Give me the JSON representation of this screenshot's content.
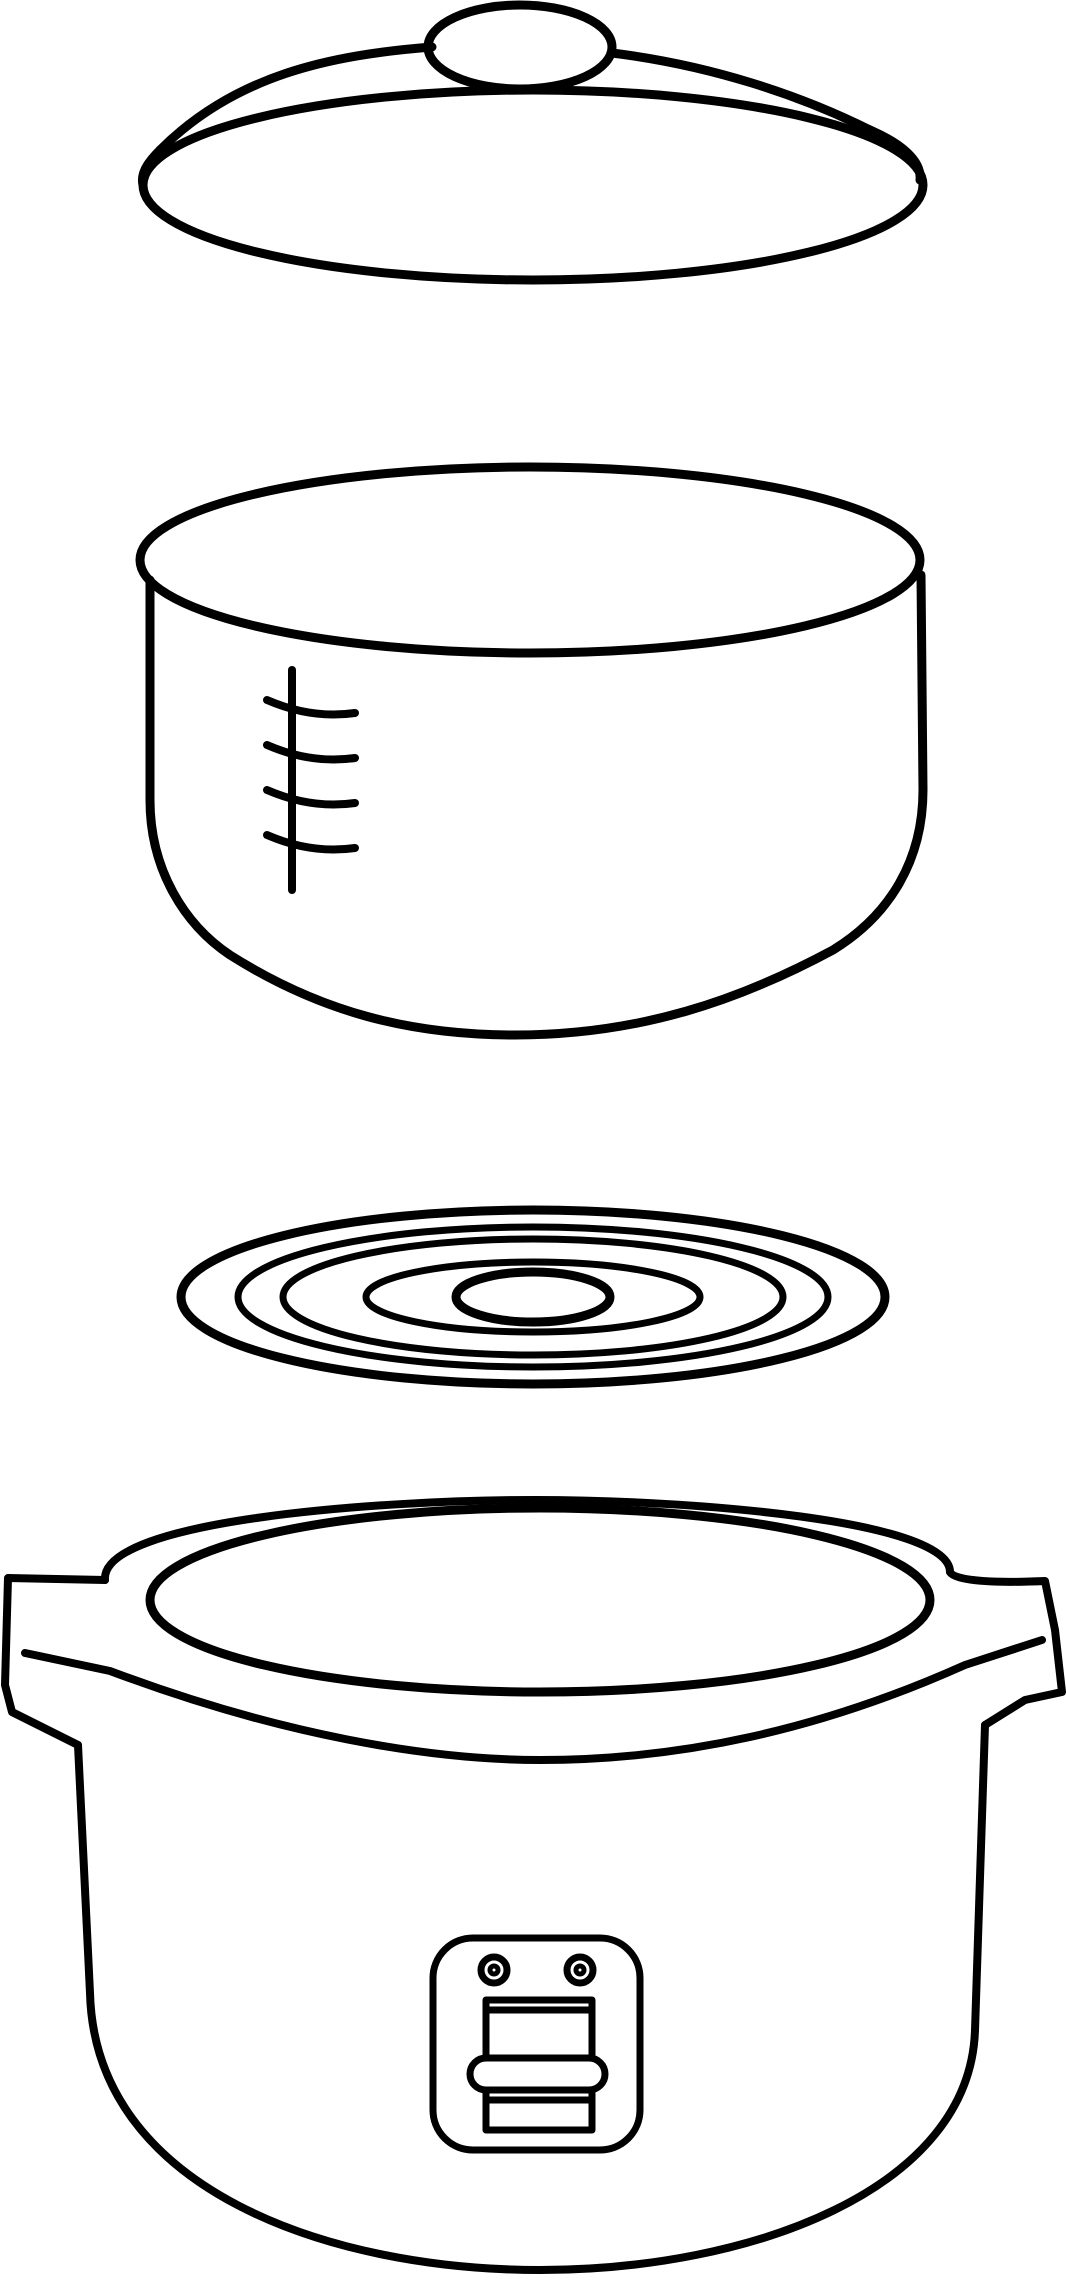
{
  "diagram": {
    "subject": "rice-cooker-exploded-view",
    "line_color": "#000000",
    "background": "#ffffff",
    "parts": [
      {
        "name": "lid",
        "features": [
          "knob"
        ]
      },
      {
        "name": "inner-pot",
        "features": [
          "measurement-scale"
        ],
        "scale_marks": 4
      },
      {
        "name": "heating-plate",
        "features": [
          "concentric-rings"
        ],
        "rings": 5
      },
      {
        "name": "cooker-base",
        "features": [
          "side-handles",
          "control-panel"
        ]
      },
      {
        "name": "control-panel",
        "features": [
          "indicator-lights",
          "switch-lever"
        ],
        "indicator_lights": 2
      }
    ]
  }
}
